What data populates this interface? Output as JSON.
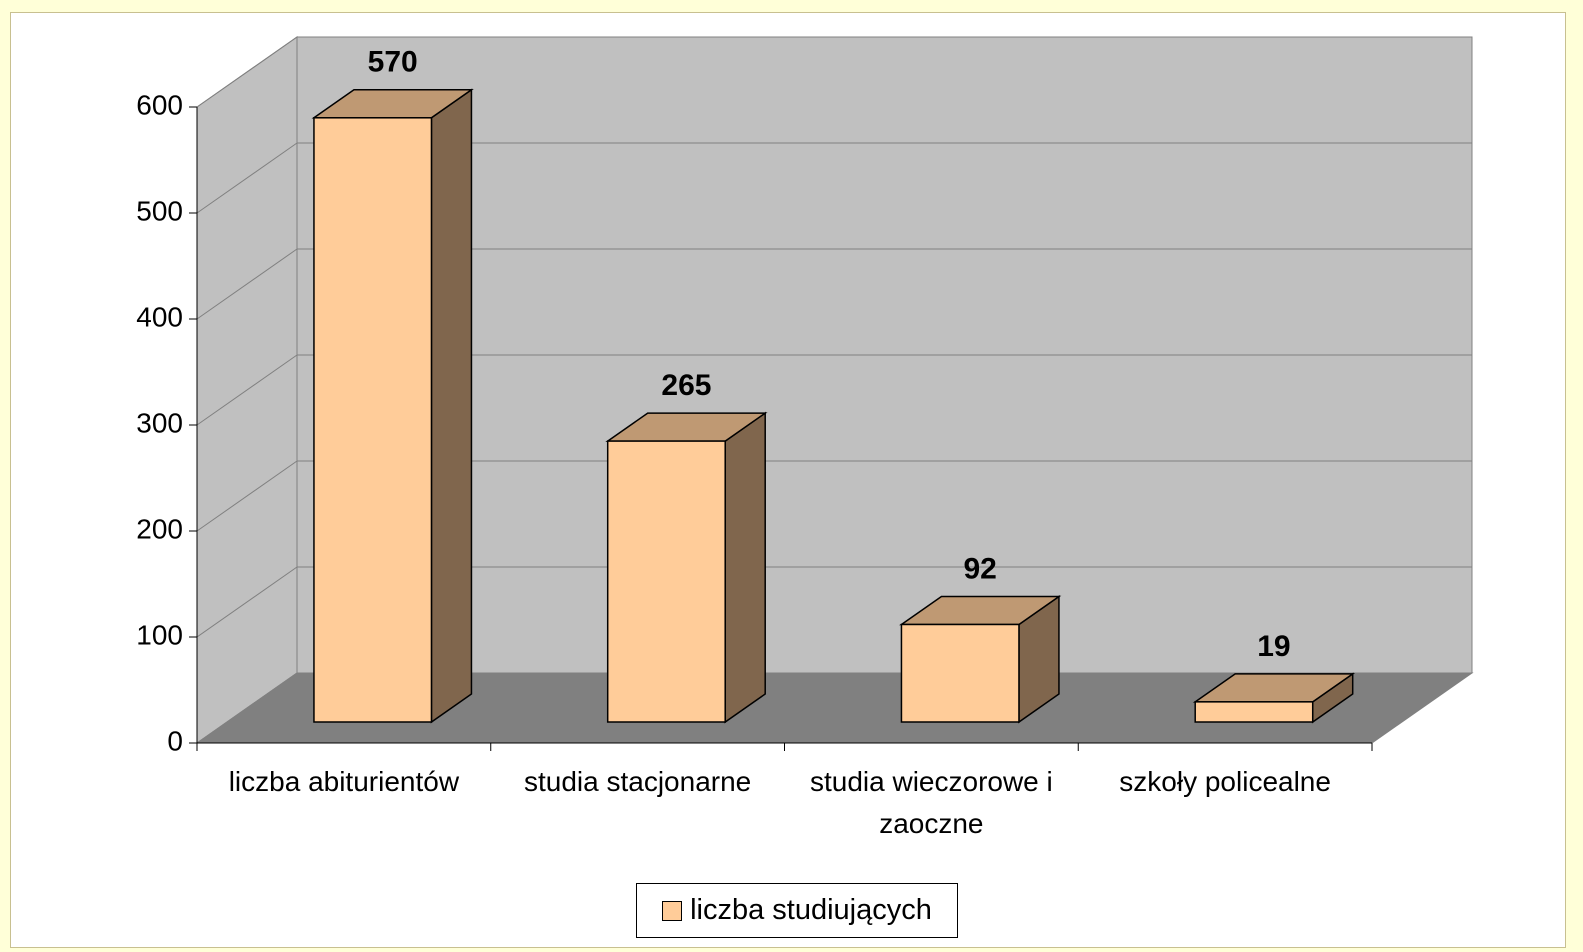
{
  "chart_data": {
    "type": "bar3d",
    "categories": [
      "liczba abiturientów",
      "studia stacjonarne",
      "studia wieczorowe i zaoczne",
      "szkoły policealne"
    ],
    "series": [
      {
        "name": "liczba studiujących",
        "color": "#FFCC99",
        "values": [
          570,
          265,
          92,
          19
        ]
      }
    ],
    "ylim": [
      0,
      600
    ],
    "yticks": [
      0,
      100,
      200,
      300,
      400,
      500,
      600
    ],
    "grid": true,
    "legend": "bottom"
  }
}
